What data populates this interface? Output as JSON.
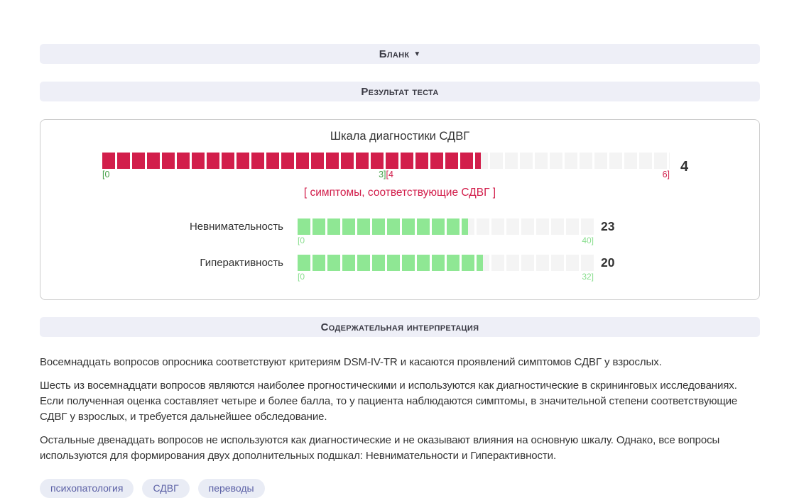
{
  "colors": {
    "crimson": "#d21e4b",
    "light_green": "#8fe794",
    "track_gray": "#f4f4f4",
    "header_bg": "#eeeff7",
    "tag_bg": "#e9ecf5",
    "tag_text": "#5c61a6"
  },
  "header_blank": {
    "label": "Бланк",
    "caret": "▼"
  },
  "header_result": {
    "label": "Результат теста"
  },
  "chart_data": {
    "type": "bar",
    "title": "Шкала диагностики СДВГ",
    "main_scale": {
      "value": 4,
      "min": 0,
      "max": 6,
      "color": "#d21e4b",
      "labels": {
        "left": "[0",
        "mid_green": "3]",
        "mid_red": "[4",
        "right": "6]"
      },
      "caption": "[ симптомы, соответствующие СДВГ ]"
    },
    "subscales": [
      {
        "name": "Невнимательность",
        "value": 23,
        "min": 0,
        "max": 40,
        "color": "#8fe794",
        "label_left": "[0",
        "label_right": "40]"
      },
      {
        "name": "Гиперактивность",
        "value": 20,
        "min": 0,
        "max": 32,
        "color": "#8fe794",
        "label_left": "[0",
        "label_right": "32]"
      }
    ]
  },
  "interpretation": {
    "title": "Содержательная интерпретация",
    "paragraphs": [
      "Восемнадцать вопросов опросника соответствуют критериям DSM-IV-TR и касаются проявлений симптомов СДВГ у взрослых.",
      "Шесть из восемнадцати вопросов являются наиболее прогностическими и используются как диагностические в скрининговых исследованиях. Если полученная оценка составляет четыре и более балла, то у пациента наблюдаются симптомы, в значительной степени соответствующие СДВГ у взрослых, и требуется дальнейшее обследование.",
      "Остальные двенадцать вопросов не используются как диагностические и не оказывают влияния на основную шкалу. Однако, все вопросы используются для формирования двух дополнительных подшкал: Невнимательности и Гиперактивности."
    ]
  },
  "tags": [
    "психопатология",
    "СДВГ",
    "переводы"
  ]
}
